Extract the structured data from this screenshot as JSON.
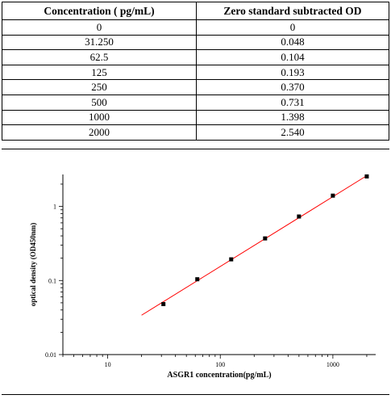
{
  "table": {
    "headers": [
      "Concentration ( pg/mL)",
      "Zero standard subtracted OD"
    ],
    "rows": [
      [
        "0",
        "0"
      ],
      [
        "31.250",
        "0.048"
      ],
      [
        "62.5",
        "0.104"
      ],
      [
        "125",
        "0.193"
      ],
      [
        "250",
        "0.370"
      ],
      [
        "500",
        "0.731"
      ],
      [
        "1000",
        "1.398"
      ],
      [
        "2000",
        "2.540"
      ]
    ]
  },
  "chart_data": {
    "type": "scatter",
    "xlabel": "ASGR1  concentration(pg/mL)",
    "ylabel": "optical density (OD450nm)",
    "x_scale": "log",
    "y_scale": "log",
    "xlim": [
      4,
      2400
    ],
    "ylim": [
      0.01,
      2.7
    ],
    "x_ticks": [
      10,
      100,
      1000
    ],
    "x_tick_labels": [
      "10",
      "100",
      "1000"
    ],
    "y_ticks": [
      0.01,
      0.1,
      1
    ],
    "y_tick_labels": [
      "0.01",
      "0.1",
      "1"
    ],
    "grid": false,
    "series": [
      {
        "x": [
          31.25,
          62.5,
          125,
          250,
          500,
          1000,
          2000
        ],
        "y": [
          0.048,
          0.104,
          0.193,
          0.37,
          0.731,
          1.398,
          2.54
        ],
        "color": "#000000"
      }
    ],
    "fit_line": {
      "x": [
        20,
        2000
      ],
      "y": [
        0.034,
        2.6
      ],
      "color": "#ff0000"
    }
  }
}
